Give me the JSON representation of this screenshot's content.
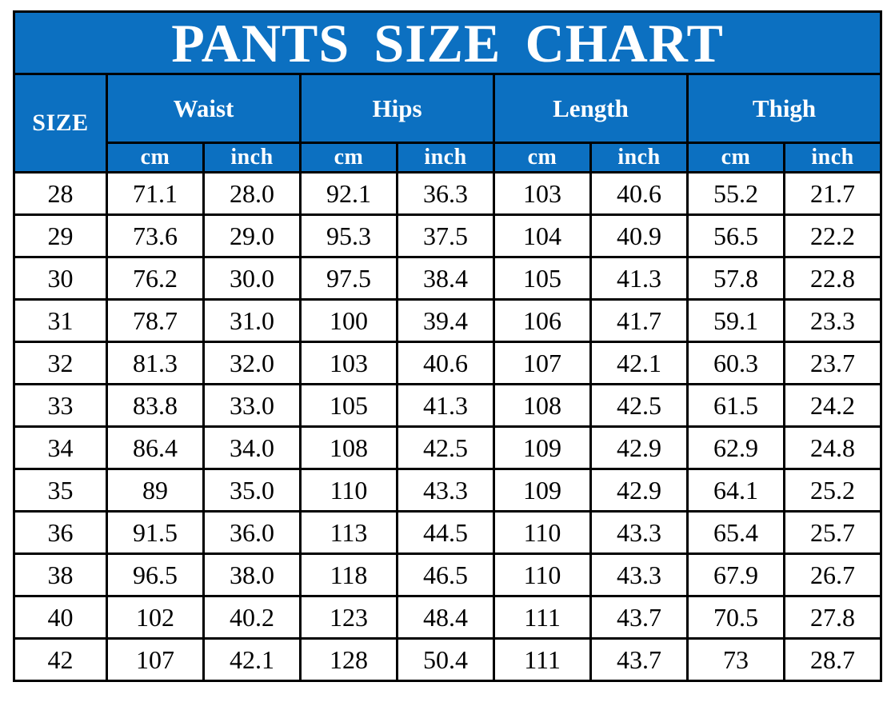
{
  "title": "PANTS SIZE CHART",
  "colors": {
    "header_blue": "#0c70c1",
    "border": "#000000",
    "header_text": "#ffffff",
    "body_text": "#000000",
    "row_background": "#ffffff"
  },
  "table": {
    "size_column_label": "SIZE",
    "groups": [
      {
        "label": "Waist"
      },
      {
        "label": "Hips"
      },
      {
        "label": "Length"
      },
      {
        "label": "Thigh"
      }
    ],
    "unit_labels": [
      "cm",
      "inch"
    ],
    "rows": [
      {
        "size": "28",
        "values": [
          "71.1",
          "28.0",
          "92.1",
          "36.3",
          "103",
          "40.6",
          "55.2",
          "21.7"
        ]
      },
      {
        "size": "29",
        "values": [
          "73.6",
          "29.0",
          "95.3",
          "37.5",
          "104",
          "40.9",
          "56.5",
          "22.2"
        ]
      },
      {
        "size": "30",
        "values": [
          "76.2",
          "30.0",
          "97.5",
          "38.4",
          "105",
          "41.3",
          "57.8",
          "22.8"
        ]
      },
      {
        "size": "31",
        "values": [
          "78.7",
          "31.0",
          "100",
          "39.4",
          "106",
          "41.7",
          "59.1",
          "23.3"
        ]
      },
      {
        "size": "32",
        "values": [
          "81.3",
          "32.0",
          "103",
          "40.6",
          "107",
          "42.1",
          "60.3",
          "23.7"
        ]
      },
      {
        "size": "33",
        "values": [
          "83.8",
          "33.0",
          "105",
          "41.3",
          "108",
          "42.5",
          "61.5",
          "24.2"
        ]
      },
      {
        "size": "34",
        "values": [
          "86.4",
          "34.0",
          "108",
          "42.5",
          "109",
          "42.9",
          "62.9",
          "24.8"
        ]
      },
      {
        "size": "35",
        "values": [
          "89",
          "35.0",
          "110",
          "43.3",
          "109",
          "42.9",
          "64.1",
          "25.2"
        ]
      },
      {
        "size": "36",
        "values": [
          "91.5",
          "36.0",
          "113",
          "44.5",
          "110",
          "43.3",
          "65.4",
          "25.7"
        ]
      },
      {
        "size": "38",
        "values": [
          "96.5",
          "38.0",
          "118",
          "46.5",
          "110",
          "43.3",
          "67.9",
          "26.7"
        ]
      },
      {
        "size": "40",
        "values": [
          "102",
          "40.2",
          "123",
          "48.4",
          "111",
          "43.7",
          "70.5",
          "27.8"
        ]
      },
      {
        "size": "42",
        "values": [
          "107",
          "42.1",
          "128",
          "50.4",
          "111",
          "43.7",
          "73",
          "28.7"
        ]
      }
    ]
  },
  "chart_data": {
    "type": "table",
    "title": "PANTS SIZE CHART",
    "columns": [
      "SIZE",
      "Waist cm",
      "Waist inch",
      "Hips cm",
      "Hips inch",
      "Length cm",
      "Length inch",
      "Thigh cm",
      "Thigh inch"
    ],
    "rows": [
      [
        28,
        71.1,
        28.0,
        92.1,
        36.3,
        103,
        40.6,
        55.2,
        21.7
      ],
      [
        29,
        73.6,
        29.0,
        95.3,
        37.5,
        104,
        40.9,
        56.5,
        22.2
      ],
      [
        30,
        76.2,
        30.0,
        97.5,
        38.4,
        105,
        41.3,
        57.8,
        22.8
      ],
      [
        31,
        78.7,
        31.0,
        100,
        39.4,
        106,
        41.7,
        59.1,
        23.3
      ],
      [
        32,
        81.3,
        32.0,
        103,
        40.6,
        107,
        42.1,
        60.3,
        23.7
      ],
      [
        33,
        83.8,
        33.0,
        105,
        41.3,
        108,
        42.5,
        61.5,
        24.2
      ],
      [
        34,
        86.4,
        34.0,
        108,
        42.5,
        109,
        42.9,
        62.9,
        24.8
      ],
      [
        35,
        89,
        35.0,
        110,
        43.3,
        109,
        42.9,
        64.1,
        25.2
      ],
      [
        36,
        91.5,
        36.0,
        113,
        44.5,
        110,
        43.3,
        65.4,
        25.7
      ],
      [
        38,
        96.5,
        38.0,
        118,
        46.5,
        110,
        43.3,
        67.9,
        26.7
      ],
      [
        40,
        102,
        40.2,
        123,
        48.4,
        111,
        43.7,
        70.5,
        27.8
      ],
      [
        42,
        107,
        42.1,
        128,
        50.4,
        111,
        43.7,
        73,
        28.7
      ]
    ]
  }
}
